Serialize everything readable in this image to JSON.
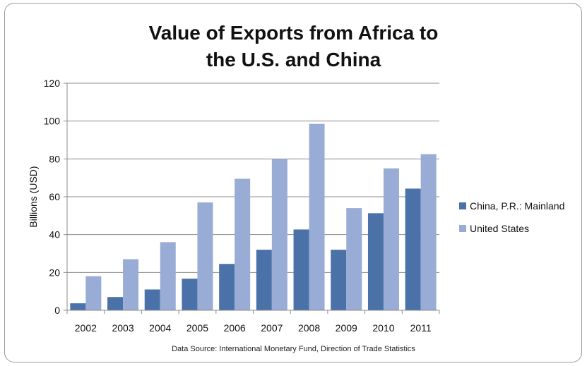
{
  "chart_data": {
    "type": "bar",
    "title_lines": [
      "Value of Exports from Africa to",
      "the U.S. and China"
    ],
    "xlabel": "",
    "ylabel": "Billions (USD)",
    "ylim": [
      0,
      120
    ],
    "yticks": [
      0,
      20,
      40,
      60,
      80,
      100,
      120
    ],
    "categories": [
      "2002",
      "2003",
      "2004",
      "2005",
      "2006",
      "2007",
      "2008",
      "2009",
      "2010",
      "2011"
    ],
    "series": [
      {
        "name": "China, P.R.: Mainland",
        "color": "#4a72a8",
        "values": [
          3.7,
          7,
          11,
          16.7,
          24.5,
          32,
          42.7,
          32,
          51.3,
          64.3
        ]
      },
      {
        "name": "United States",
        "color": "#99acd6",
        "values": [
          18,
          27,
          36,
          57,
          69.5,
          80,
          98.5,
          54,
          75,
          82.5
        ]
      }
    ],
    "grid": true,
    "legend_position": "right",
    "source_note": "Data Source: International Monetary Fund, Direction of Trade Statistics"
  }
}
